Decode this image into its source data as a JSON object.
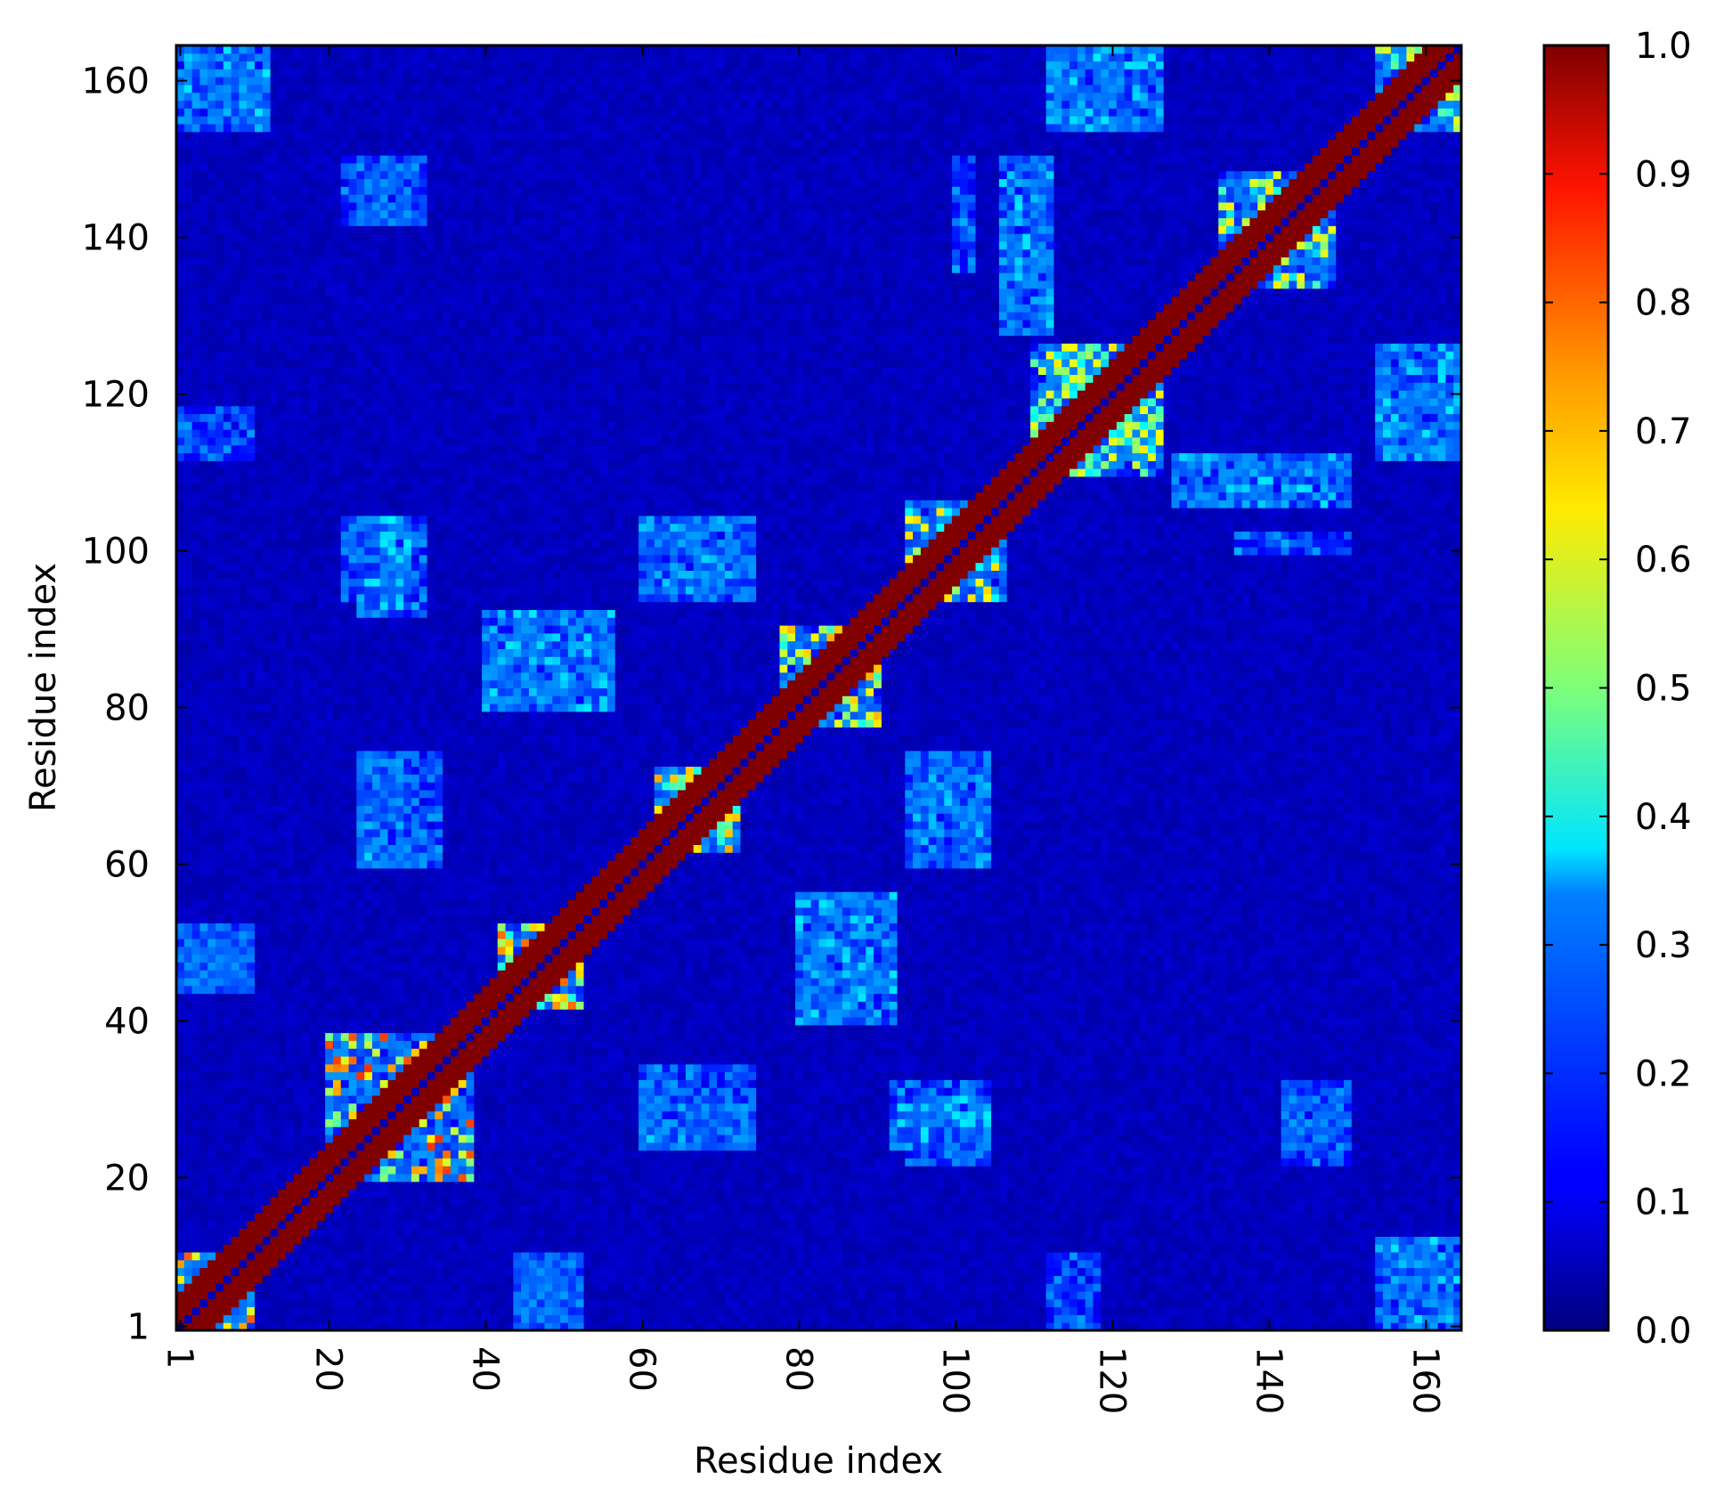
{
  "chart_data": {
    "type": "heatmap",
    "xlabel": "Residue index",
    "ylabel": "Residue index",
    "x_range": [
      1,
      164
    ],
    "y_range": [
      1,
      164
    ],
    "x_ticks": [
      1,
      20,
      40,
      60,
      80,
      100,
      120,
      140,
      160
    ],
    "y_ticks": [
      1,
      20,
      40,
      60,
      80,
      100,
      120,
      140,
      160
    ],
    "x_tick_labels": [
      "1",
      "20",
      "40",
      "60",
      "80",
      "100",
      "120",
      "140",
      "160"
    ],
    "y_tick_labels": [
      "1",
      "20",
      "40",
      "60",
      "80",
      "100",
      "120",
      "140",
      "160"
    ],
    "x_tick_rotation": "vertical",
    "colormap": "jet",
    "colorbar": {
      "range": [
        0.0,
        1.0
      ],
      "ticks": [
        0.0,
        0.1,
        0.2,
        0.3,
        0.4,
        0.5,
        0.6,
        0.7,
        0.8,
        0.9,
        1.0
      ],
      "tick_labels": [
        "0.0",
        "0.1",
        "0.2",
        "0.3",
        "0.4",
        "0.5",
        "0.6",
        "0.7",
        "0.8",
        "0.9",
        "1.0"
      ]
    },
    "matrix_size": 164,
    "diagonal_band": {
      "value": 1.0,
      "main_diagonal_value": 0.05
    },
    "background_value": 0.04,
    "contact_blocks": [
      {
        "x": [
          1,
          10
        ],
        "y": [
          1,
          10
        ],
        "value": 0.75
      },
      {
        "x": [
          20,
          38
        ],
        "y": [
          20,
          38
        ],
        "value": 0.7
      },
      {
        "x": [
          42,
          52
        ],
        "y": [
          42,
          52
        ],
        "value": 0.65
      },
      {
        "x": [
          62,
          72
        ],
        "y": [
          62,
          72
        ],
        "value": 0.65
      },
      {
        "x": [
          78,
          90
        ],
        "y": [
          78,
          90
        ],
        "value": 0.6
      },
      {
        "x": [
          94,
          106
        ],
        "y": [
          94,
          106
        ],
        "value": 0.6
      },
      {
        "x": [
          110,
          126
        ],
        "y": [
          110,
          126
        ],
        "value": 0.55
      },
      {
        "x": [
          134,
          148
        ],
        "y": [
          134,
          148
        ],
        "value": 0.55
      },
      {
        "x": [
          154,
          164
        ],
        "y": [
          154,
          164
        ],
        "value": 0.5
      },
      {
        "x": [
          1,
          12
        ],
        "y": [
          154,
          164
        ],
        "value": 0.3
      },
      {
        "x": [
          24,
          32
        ],
        "y": [
          92,
          104
        ],
        "value": 0.3
      },
      {
        "x": [
          24,
          34
        ],
        "y": [
          60,
          74
        ],
        "value": 0.25
      },
      {
        "x": [
          60,
          74
        ],
        "y": [
          24,
          30
        ],
        "value": 0.28
      },
      {
        "x": [
          94,
          104
        ],
        "y": [
          22,
          30
        ],
        "value": 0.3
      },
      {
        "x": [
          60,
          74
        ],
        "y": [
          94,
          104
        ],
        "value": 0.28
      },
      {
        "x": [
          94,
          104
        ],
        "y": [
          60,
          74
        ],
        "value": 0.25
      },
      {
        "x": [
          112,
          126
        ],
        "y": [
          112,
          126
        ],
        "value": 0.45
      },
      {
        "x": [
          112,
          126
        ],
        "y": [
          154,
          164
        ],
        "value": 0.3
      },
      {
        "x": [
          154,
          164
        ],
        "y": [
          112,
          126
        ],
        "value": 0.3
      },
      {
        "x": [
          154,
          164
        ],
        "y": [
          1,
          10
        ],
        "value": 0.25
      },
      {
        "x": [
          1,
          10
        ],
        "y": [
          112,
          118
        ],
        "value": 0.2
      },
      {
        "x": [
          1,
          10
        ],
        "y": [
          44,
          52
        ],
        "value": 0.22
      },
      {
        "x": [
          44,
          52
        ],
        "y": [
          1,
          10
        ],
        "value": 0.22
      },
      {
        "x": [
          136,
          150
        ],
        "y": [
          100,
          102
        ],
        "value": 0.25
      },
      {
        "x": [
          142,
          150
        ],
        "y": [
          22,
          30
        ],
        "value": 0.2
      },
      {
        "x": [
          24,
          32
        ],
        "y": [
          142,
          150
        ],
        "value": 0.2
      },
      {
        "x": [
          80,
          92
        ],
        "y": [
          40,
          56
        ],
        "value": 0.3
      },
      {
        "x": [
          40,
          56
        ],
        "y": [
          80,
          92
        ],
        "value": 0.3
      },
      {
        "x": [
          106,
          112
        ],
        "y": [
          128,
          150
        ],
        "value": 0.3
      },
      {
        "x": [
          128,
          150
        ],
        "y": [
          106,
          112
        ],
        "value": 0.3
      }
    ]
  }
}
